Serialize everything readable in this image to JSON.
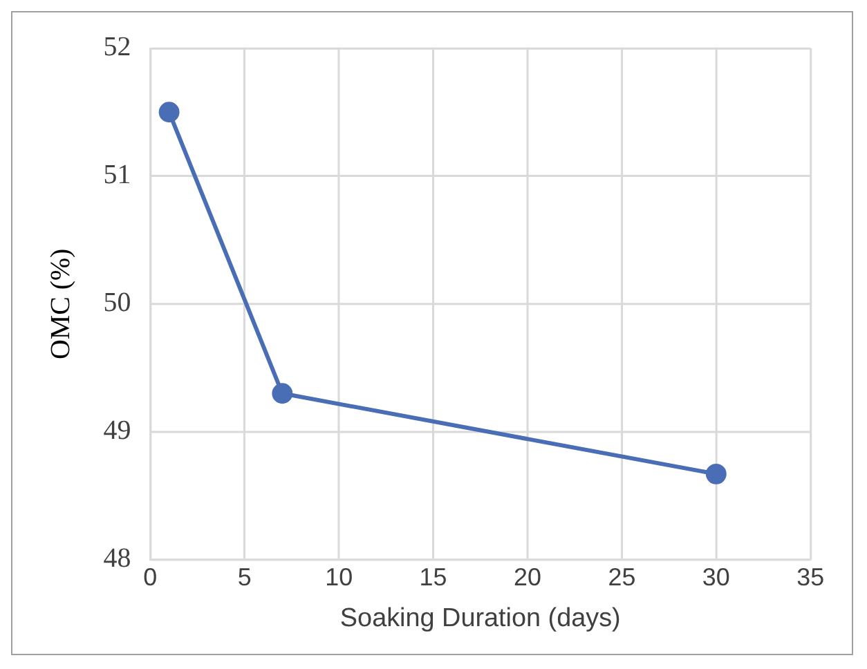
{
  "chart_data": {
    "type": "line",
    "xlabel": "Soaking Duration (days)",
    "ylabel": "OMC (%)",
    "x": [
      1,
      7,
      30
    ],
    "series": [
      {
        "color": "#4a6eb5",
        "values": [
          51.5,
          49.3,
          48.67
        ]
      }
    ],
    "xlim": [
      0,
      35
    ],
    "xticks": [
      0,
      5,
      10,
      15,
      20,
      25,
      30,
      35
    ],
    "ylim": [
      48,
      52
    ],
    "yticks": [
      48,
      49,
      50,
      51,
      52
    ],
    "grid": true,
    "legend": false,
    "marker": "circle",
    "line_style": "solid"
  }
}
